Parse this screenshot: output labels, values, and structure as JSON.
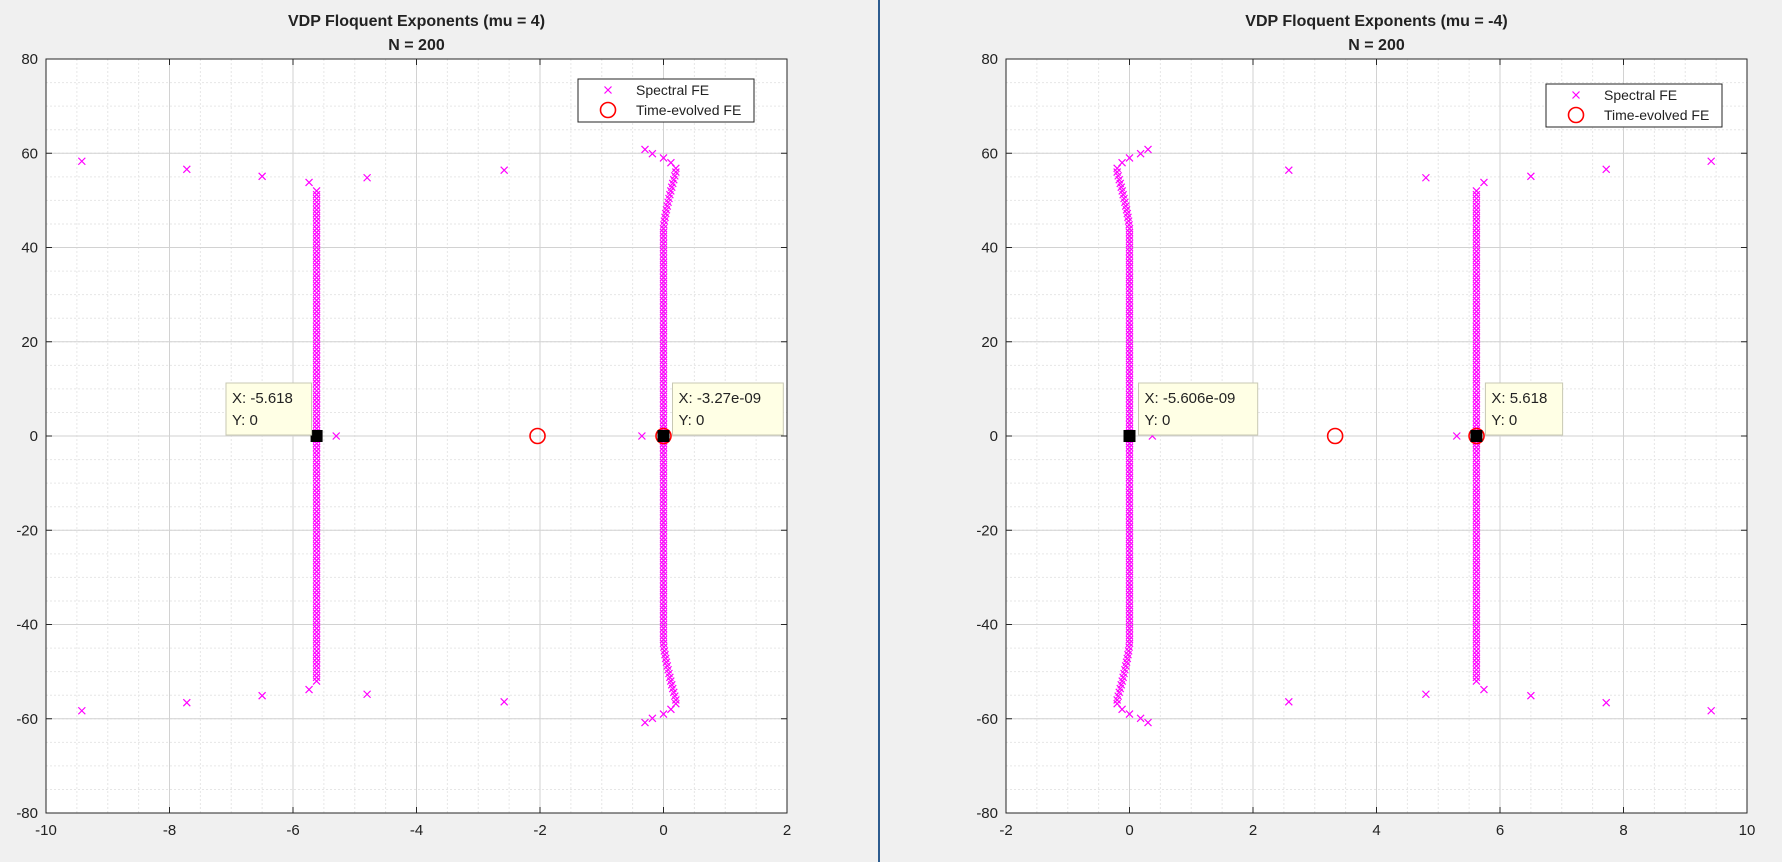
{
  "chart_data": [
    {
      "type": "scatter",
      "title": "VDP Floquent Exponents (mu = 4)",
      "subtitle": "N = 200",
      "xlabel": "",
      "ylabel": "",
      "xlim": [
        -10,
        2
      ],
      "ylim": [
        -80,
        80
      ],
      "xticks": [
        -10,
        -8,
        -6,
        -4,
        -2,
        0,
        2
      ],
      "yticks": [
        -80,
        -60,
        -40,
        -20,
        0,
        20,
        40,
        60,
        80
      ],
      "grid": true,
      "minor_grid": true,
      "legend_position": "top-right",
      "legend": [
        "Spectral FE",
        "Time-evolved FE"
      ],
      "series": [
        {
          "name": "Spectral FE",
          "marker": "x",
          "color": "#ff00ff",
          "line_x": -5.618,
          "points": [
            [
              -9.42,
              58.3
            ],
            [
              -9.42,
              -58.3
            ],
            [
              -7.72,
              56.6
            ],
            [
              -7.72,
              -56.6
            ],
            [
              -6.5,
              55.1
            ],
            [
              -6.5,
              -55.1
            ],
            [
              -4.8,
              54.8
            ],
            [
              -4.8,
              -54.8
            ],
            [
              -2.58,
              56.4
            ],
            [
              -2.58,
              -56.4
            ],
            [
              -5.74,
              53.8
            ],
            [
              -5.74,
              -53.8
            ],
            [
              -5.3,
              0
            ],
            [
              -0.35,
              0
            ],
            [
              -0.3,
              60.8
            ],
            [
              -0.18,
              59.9
            ],
            [
              0.0,
              59.0
            ],
            [
              0.12,
              58.0
            ],
            [
              0.2,
              56.8
            ],
            [
              -0.3,
              -60.8
            ],
            [
              -0.18,
              -59.9
            ],
            [
              0.0,
              -59.0
            ],
            [
              0.12,
              -58.0
            ],
            [
              0.2,
              -56.8
            ]
          ]
        },
        {
          "name": "Time-evolved FE",
          "marker": "o",
          "color": "#ff0000",
          "points": [
            [
              -2.04,
              0
            ],
            [
              0.0,
              0
            ]
          ]
        }
      ],
      "datatips": [
        {
          "x_label": "X: -5.618",
          "y_label": "Y: 0",
          "x": -5.618,
          "y": 0
        },
        {
          "x_label": "X: -3.27e-09",
          "y_label": "Y: 0",
          "x": 0,
          "y": 0
        }
      ]
    },
    {
      "type": "scatter",
      "title": "VDP Floquent Exponents (mu = -4)",
      "subtitle": "N = 200",
      "xlabel": "",
      "ylabel": "",
      "xlim": [
        -2,
        10
      ],
      "ylim": [
        -80,
        80
      ],
      "xticks": [
        -2,
        0,
        2,
        4,
        6,
        8,
        10
      ],
      "yticks": [
        -80,
        -60,
        -40,
        -20,
        0,
        20,
        40,
        60,
        80
      ],
      "grid": true,
      "minor_grid": true,
      "legend_position": "top-right",
      "legend": [
        "Spectral FE",
        "Time-evolved FE"
      ],
      "series": [
        {
          "name": "Spectral FE",
          "marker": "x",
          "color": "#ff00ff",
          "line_x": 5.618,
          "points": [
            [
              9.42,
              58.3
            ],
            [
              9.42,
              -58.3
            ],
            [
              7.72,
              56.6
            ],
            [
              7.72,
              -56.6
            ],
            [
              6.5,
              55.1
            ],
            [
              6.5,
              -55.1
            ],
            [
              4.8,
              54.8
            ],
            [
              4.8,
              -54.8
            ],
            [
              2.58,
              56.4
            ],
            [
              2.58,
              -56.4
            ],
            [
              5.74,
              53.8
            ],
            [
              5.74,
              -53.8
            ],
            [
              5.3,
              0
            ],
            [
              0.37,
              0
            ],
            [
              0.3,
              60.8
            ],
            [
              0.18,
              59.9
            ],
            [
              0.0,
              59.0
            ],
            [
              -0.12,
              58.0
            ],
            [
              -0.2,
              56.8
            ],
            [
              0.3,
              -60.8
            ],
            [
              0.18,
              -59.9
            ],
            [
              0.0,
              -59.0
            ],
            [
              -0.12,
              -58.0
            ],
            [
              -0.2,
              -56.8
            ]
          ]
        },
        {
          "name": "Time-evolved FE",
          "marker": "o",
          "color": "#ff0000",
          "points": [
            [
              3.33,
              0
            ],
            [
              5.62,
              0
            ]
          ]
        }
      ],
      "datatips": [
        {
          "x_label": "X: -5.606e-09",
          "y_label": "Y: 0",
          "x": 0,
          "y": 0
        },
        {
          "x_label": "X: 5.618",
          "y_label": "Y: 0",
          "x": 5.618,
          "y": 0
        }
      ]
    }
  ]
}
